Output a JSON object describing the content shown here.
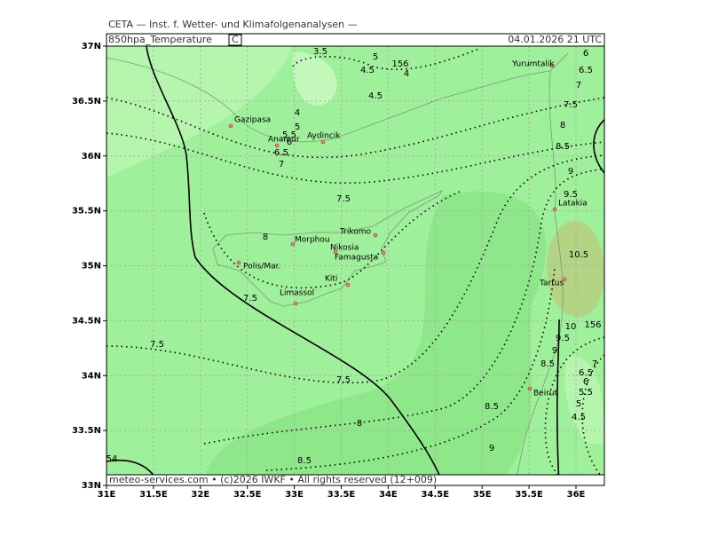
{
  "header": {
    "institute": "CETA — Inst. f. Wetter- und Klimafolgenanalysen —",
    "field": "850hpa_Temperature",
    "unit": "C",
    "valid": "04.01.2026 21 UTC"
  },
  "footer": "meteo-services.com • (c)2026 IWKF • All rights reserved (12+009)",
  "map": {
    "lon_ticks": [
      {
        "value": 31,
        "label": "31E"
      },
      {
        "value": 31.5,
        "label": "31.5E"
      },
      {
        "value": 32,
        "label": "32E"
      },
      {
        "value": 32.5,
        "label": "32.5E"
      },
      {
        "value": 33,
        "label": "33E"
      },
      {
        "value": 33.5,
        "label": "33.5E"
      },
      {
        "value": 34,
        "label": "34E"
      },
      {
        "value": 34.5,
        "label": "34.5E"
      },
      {
        "value": 35,
        "label": "35E"
      },
      {
        "value": 35.5,
        "label": "35.5E"
      },
      {
        "value": 36,
        "label": "36E"
      }
    ],
    "lat_ticks": [
      {
        "value": 37,
        "label": "37N"
      },
      {
        "value": 36.5,
        "label": "36.5N"
      },
      {
        "value": 36,
        "label": "36N"
      },
      {
        "value": 35.5,
        "label": "35.5N"
      },
      {
        "value": 35,
        "label": "35N"
      },
      {
        "value": 34.5,
        "label": "34.5N"
      },
      {
        "value": 34,
        "label": "34N"
      },
      {
        "value": 33.5,
        "label": "33.5N"
      },
      {
        "value": 33,
        "label": "33N"
      }
    ],
    "cities": [
      "Yurumtalik",
      "Gazipasa",
      "Anamur",
      "Aydincik",
      "Trikomo",
      "Morphou",
      "Nikosia",
      "Famagusta",
      "Polis/Mar.",
      "Kiti",
      "Limassol",
      "Latakia",
      "Tartus",
      "Beirut"
    ],
    "contour_labels": [
      "3.5",
      "5",
      "156",
      "4.5",
      "4",
      "4.5",
      "4",
      "5",
      "5.5",
      "6",
      "6.5",
      "7",
      "7.5",
      "8",
      "7.5",
      "7.5",
      "7.5",
      "8",
      "8.5",
      "8.5",
      "9",
      "54",
      "6",
      "6.5",
      "7",
      "7.5",
      "8",
      "8.5",
      "9",
      "9.5",
      "10.5",
      "10",
      "156",
      "9.5",
      "9",
      "8.5",
      "6.5",
      "7",
      "6",
      "5.5",
      "5",
      "4.5"
    ]
  }
}
